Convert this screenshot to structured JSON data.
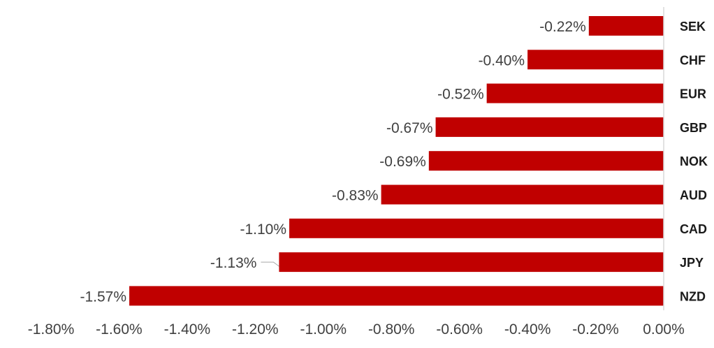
{
  "chart_data": {
    "type": "bar",
    "orientation": "horizontal",
    "categories": [
      "SEK",
      "CHF",
      "EUR",
      "GBP",
      "NOK",
      "AUD",
      "CAD",
      "JPY",
      "NZD"
    ],
    "values": [
      -0.22,
      -0.4,
      -0.52,
      -0.67,
      -0.69,
      -0.83,
      -1.1,
      -1.13,
      -1.57
    ],
    "data_labels": [
      "-0.22%",
      "-0.40%",
      "-0.52%",
      "-0.67%",
      "-0.69%",
      "-0.83%",
      "-1.10%",
      "-1.13%",
      "-1.57%"
    ],
    "xlim": [
      -1.8,
      0.0
    ],
    "x_ticks": [
      -1.8,
      -1.6,
      -1.4,
      -1.2,
      -1.0,
      -0.8,
      -0.6,
      -0.4,
      -0.2,
      0.0
    ],
    "x_tick_labels": [
      "-1.80%",
      "-1.60%",
      "-1.40%",
      "-1.20%",
      "-1.00%",
      "-0.80%",
      "-0.60%",
      "-0.40%",
      "-0.20%",
      "0.00%"
    ],
    "title": "",
    "xlabel": "",
    "ylabel": "",
    "grid": false,
    "legend": "none",
    "bar_color": "#c00000"
  }
}
